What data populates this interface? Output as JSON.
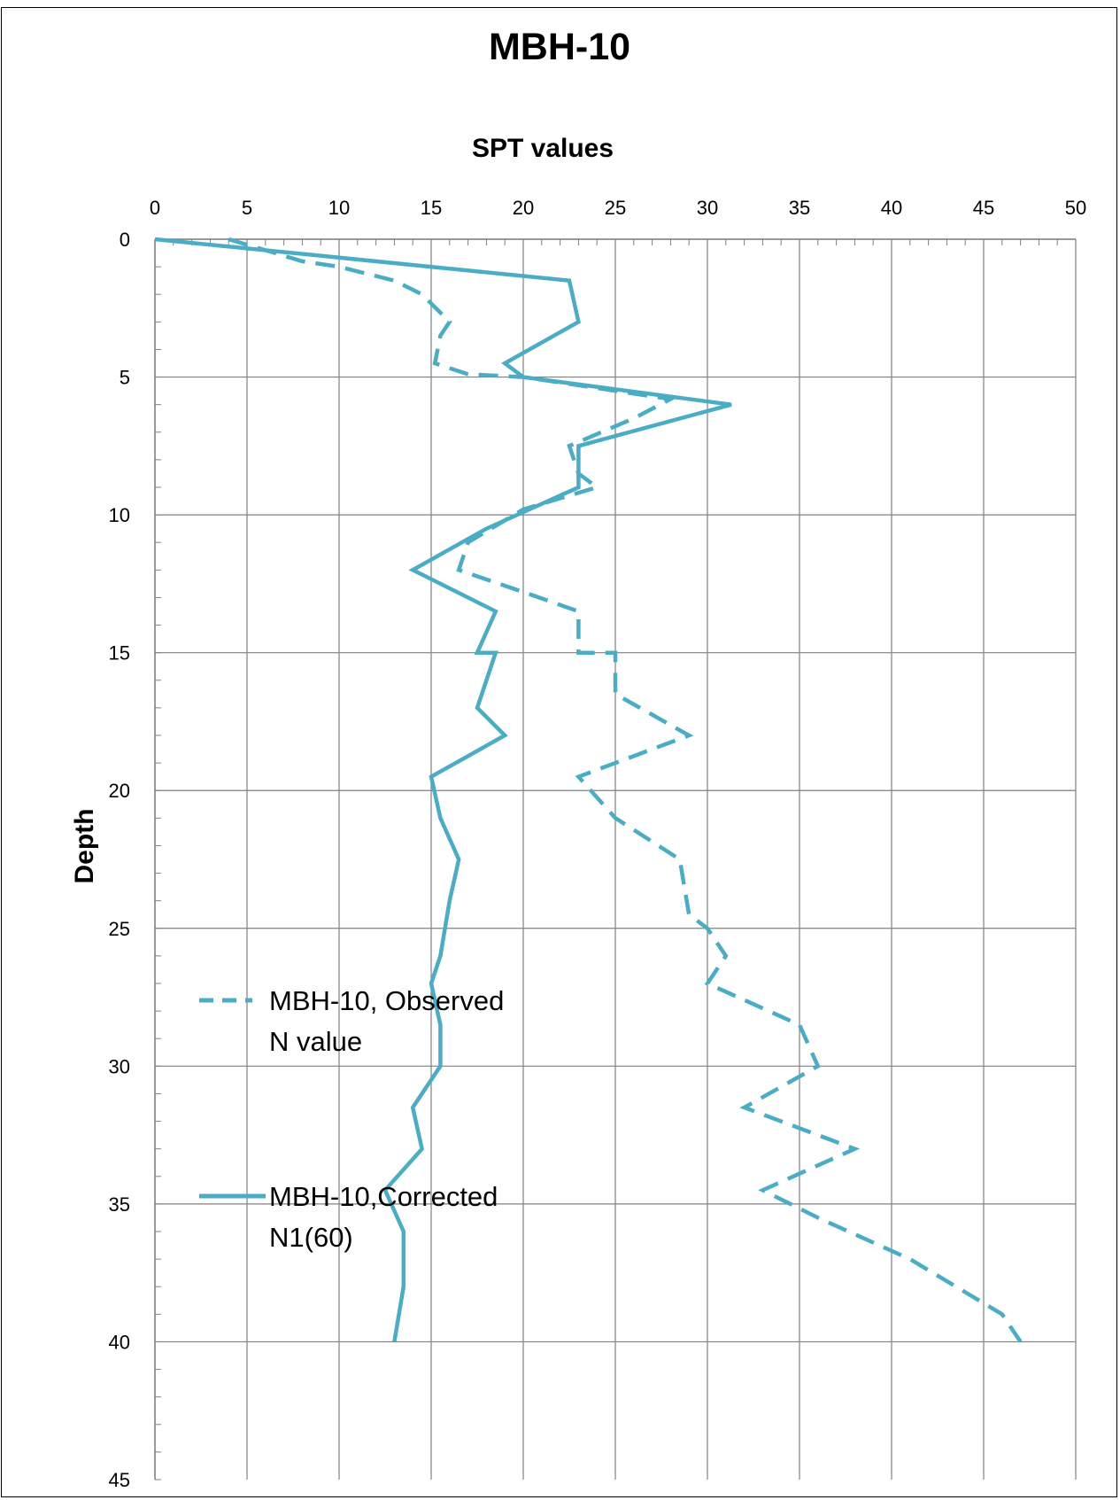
{
  "chart_data": {
    "type": "line",
    "title": "MBH-10",
    "xlabel": "SPT values",
    "ylabel": "Depth",
    "x_axis_position": "top",
    "y_axis_inverted": true,
    "xlim": [
      0,
      50
    ],
    "ylim": [
      0,
      45
    ],
    "x_major_step": 5,
    "y_major_step": 5,
    "x_minor_step": 1,
    "y_minor_step": 1,
    "x_ticks": [
      "0",
      "5",
      "10",
      "15",
      "20",
      "25",
      "30",
      "35",
      "40",
      "45",
      "50"
    ],
    "y_ticks": [
      "0",
      "5",
      "10",
      "15",
      "20",
      "25",
      "30",
      "35",
      "40",
      "45"
    ],
    "grid": true,
    "legend_position": "left-inside",
    "series": [
      {
        "name": "MBH-10, Observed N value",
        "legend_lines": [
          "MBH-10, Observed",
          "N value"
        ],
        "style": "dashed",
        "color": "#4BACC6",
        "points": [
          [
            4,
            0
          ],
          [
            6,
            0.4
          ],
          [
            8,
            0.8
          ],
          [
            10,
            1
          ],
          [
            13,
            1.5
          ],
          [
            14.5,
            2
          ],
          [
            16,
            3
          ],
          [
            15.5,
            3.5
          ],
          [
            15.2,
            4.5
          ],
          [
            17,
            4.9
          ],
          [
            20,
            5
          ],
          [
            25,
            5.5
          ],
          [
            28,
            5.8
          ],
          [
            26,
            6.5
          ],
          [
            22.5,
            7.5
          ],
          [
            23,
            8.5
          ],
          [
            24,
            9
          ],
          [
            20,
            9.8
          ],
          [
            17,
            11
          ],
          [
            16.5,
            12
          ],
          [
            20,
            12.8
          ],
          [
            23,
            13.5
          ],
          [
            23,
            15
          ],
          [
            25,
            15
          ],
          [
            25,
            16.5
          ],
          [
            29,
            18
          ],
          [
            23,
            19.5
          ],
          [
            25,
            21
          ],
          [
            28.5,
            22.5
          ],
          [
            29,
            24.5
          ],
          [
            30,
            25
          ],
          [
            31,
            26
          ],
          [
            30,
            27
          ],
          [
            35,
            28.5
          ],
          [
            36,
            30
          ],
          [
            32,
            31.5
          ],
          [
            38,
            33
          ],
          [
            33,
            34.5
          ],
          [
            36,
            35.5
          ],
          [
            41,
            37
          ],
          [
            46,
            39
          ],
          [
            47,
            40
          ]
        ]
      },
      {
        "name": "MBH-10,Corrected N1(60)",
        "legend_lines": [
          "MBH-10,Corrected",
          "N1(60)"
        ],
        "style": "solid",
        "color": "#4BACC6",
        "points": [
          [
            0,
            0
          ],
          [
            22.5,
            1.5
          ],
          [
            23,
            3
          ],
          [
            19,
            4.5
          ],
          [
            20,
            5
          ],
          [
            31.3,
            6
          ],
          [
            23,
            7.5
          ],
          [
            23,
            9
          ],
          [
            18,
            10.5
          ],
          [
            14,
            12
          ],
          [
            18.5,
            13.5
          ],
          [
            17.5,
            15
          ],
          [
            18.5,
            15
          ],
          [
            17.5,
            17
          ],
          [
            19,
            18
          ],
          [
            15,
            19.5
          ],
          [
            15.5,
            21
          ],
          [
            16.5,
            22.5
          ],
          [
            16,
            24
          ],
          [
            15.5,
            26
          ],
          [
            15,
            27
          ],
          [
            15.5,
            28.5
          ],
          [
            15.5,
            30
          ],
          [
            14,
            31.5
          ],
          [
            14.5,
            33
          ],
          [
            12.5,
            34.5
          ],
          [
            13.5,
            36
          ],
          [
            13.5,
            38
          ],
          [
            13,
            40
          ]
        ]
      }
    ]
  }
}
